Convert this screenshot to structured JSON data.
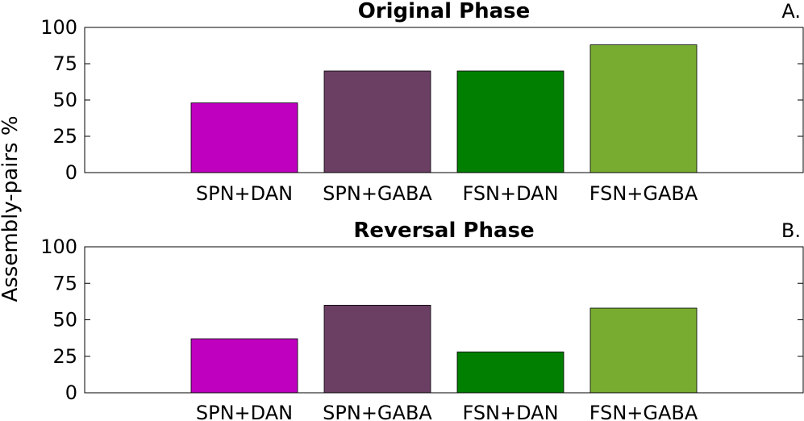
{
  "figure": {
    "ylabel": "Assembly-pairs %"
  },
  "chart_data": [
    {
      "type": "bar",
      "title": "Original Phase",
      "panel_label": "A.",
      "categories": [
        "SPN+DAN",
        "SPN+GABA",
        "FSN+DAN",
        "FSN+GABA"
      ],
      "values": [
        48,
        70,
        70,
        88
      ],
      "colors": [
        "#BF00BF",
        "#6B3E64",
        "#007F00",
        "#77AC30"
      ],
      "ylim": [
        0,
        100
      ],
      "yticks": [
        0,
        25,
        50,
        75,
        100
      ],
      "xlabel": "",
      "ylabel": "Assembly-pairs %",
      "grid": false
    },
    {
      "type": "bar",
      "title": "Reversal Phase",
      "panel_label": "B.",
      "categories": [
        "SPN+DAN",
        "SPN+GABA",
        "FSN+DAN",
        "FSN+GABA"
      ],
      "values": [
        37,
        60,
        28,
        58
      ],
      "colors": [
        "#BF00BF",
        "#6B3E64",
        "#007F00",
        "#77AC30"
      ],
      "ylim": [
        0,
        100
      ],
      "yticks": [
        0,
        25,
        50,
        75,
        100
      ],
      "xlabel": "",
      "ylabel": "Assembly-pairs %",
      "grid": false
    }
  ]
}
